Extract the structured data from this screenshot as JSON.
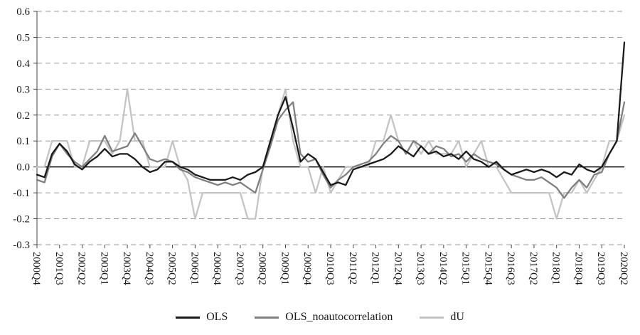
{
  "chart_data": {
    "type": "line",
    "title": "",
    "xlabel": "",
    "ylabel": "",
    "ylim": [
      -0.3,
      0.6
    ],
    "y_ticks": [
      "0.6",
      "0.5",
      "0.4",
      "0.3",
      "0.2",
      "0.1",
      "0.0",
      "-0.1",
      "-0.2",
      "-0.3"
    ],
    "x_tick_every": 3,
    "grid": "dashed-horizontal",
    "grid_color": "#9a9a9a",
    "zero_line_color": "#000000",
    "legend_position": "bottom",
    "x": [
      "2000Q4",
      "2001Q1",
      "2001Q2",
      "2001Q3",
      "2001Q4",
      "2002Q1",
      "2002Q2",
      "2002Q3",
      "2002Q4",
      "2003Q1",
      "2003Q2",
      "2003Q3",
      "2003Q4",
      "2004Q1",
      "2004Q2",
      "2004Q3",
      "2004Q4",
      "2005Q1",
      "2005Q2",
      "2005Q3",
      "2005Q4",
      "2006Q1",
      "2006Q2",
      "2006Q3",
      "2006Q4",
      "2007Q1",
      "2007Q2",
      "2007Q3",
      "2007Q4",
      "2008Q1",
      "2008Q2",
      "2008Q3",
      "2008Q4",
      "2009Q1",
      "2009Q2",
      "2009Q3",
      "2009Q4",
      "2010Q1",
      "2010Q2",
      "2010Q3",
      "2010Q4",
      "2011Q1",
      "2011Q2",
      "2011Q3",
      "2011Q4",
      "2012Q1",
      "2012Q2",
      "2012Q3",
      "2012Q4",
      "2013Q1",
      "2013Q2",
      "2013Q3",
      "2013Q4",
      "2014Q1",
      "2014Q2",
      "2014Q3",
      "2014Q4",
      "2015Q1",
      "2015Q2",
      "2015Q3",
      "2015Q4",
      "2016Q1",
      "2016Q2",
      "2016Q3",
      "2016Q4",
      "2017Q1",
      "2017Q2",
      "2017Q3",
      "2017Q4",
      "2018Q1",
      "2018Q2",
      "2018Q3",
      "2018Q4",
      "2019Q1",
      "2019Q2",
      "2019Q3",
      "2019Q4",
      "2020Q1",
      "2020Q2"
    ],
    "series": [
      {
        "name": "OLS",
        "color": "#1a1a1a",
        "stroke_width": 2.3,
        "values": [
          -0.03,
          -0.04,
          0.05,
          0.09,
          0.06,
          0.01,
          -0.01,
          0.02,
          0.04,
          0.07,
          0.04,
          0.05,
          0.05,
          0.03,
          0.0,
          -0.02,
          -0.01,
          0.02,
          0.02,
          0.0,
          -0.01,
          -0.03,
          -0.04,
          -0.05,
          -0.05,
          -0.05,
          -0.04,
          -0.05,
          -0.03,
          -0.02,
          0.0,
          0.1,
          0.2,
          0.27,
          0.15,
          0.02,
          0.05,
          0.03,
          -0.02,
          -0.07,
          -0.06,
          -0.07,
          -0.01,
          0.0,
          0.01,
          0.02,
          0.03,
          0.05,
          0.08,
          0.06,
          0.04,
          0.08,
          0.05,
          0.06,
          0.04,
          0.05,
          0.03,
          0.06,
          0.03,
          0.02,
          0.0,
          0.02,
          -0.01,
          -0.03,
          -0.02,
          -0.01,
          -0.02,
          -0.01,
          -0.02,
          -0.04,
          -0.02,
          -0.03,
          0.01,
          -0.01,
          -0.02,
          0.0,
          0.05,
          0.1,
          0.48
        ]
      },
      {
        "name": "OLS_noautocorrelation",
        "color": "#808080",
        "stroke_width": 2.3,
        "values": [
          -0.05,
          -0.06,
          0.04,
          0.09,
          0.05,
          0.02,
          0.0,
          0.03,
          0.06,
          0.12,
          0.06,
          0.07,
          0.08,
          0.13,
          0.08,
          0.03,
          0.02,
          0.03,
          0.02,
          -0.01,
          -0.02,
          -0.04,
          -0.05,
          -0.06,
          -0.07,
          -0.06,
          -0.07,
          -0.06,
          -0.08,
          -0.1,
          -0.01,
          0.08,
          0.18,
          0.22,
          0.25,
          0.05,
          0.02,
          0.03,
          -0.03,
          -0.08,
          -0.05,
          -0.03,
          0.0,
          0.01,
          0.02,
          0.05,
          0.09,
          0.12,
          0.1,
          0.05,
          0.1,
          0.08,
          0.05,
          0.08,
          0.07,
          0.04,
          0.05,
          0.02,
          0.05,
          0.03,
          0.02,
          0.01,
          -0.01,
          -0.03,
          -0.04,
          -0.05,
          -0.05,
          -0.04,
          -0.06,
          -0.08,
          -0.12,
          -0.08,
          -0.05,
          -0.08,
          -0.03,
          -0.02,
          0.05,
          0.1,
          0.25
        ]
      },
      {
        "name": "dU",
        "color": "#c4c4c4",
        "stroke_width": 2.3,
        "values": [
          0.0,
          0.0,
          0.1,
          0.1,
          0.1,
          0.0,
          0.0,
          0.1,
          0.1,
          0.1,
          0.05,
          0.1,
          0.3,
          0.1,
          0.1,
          0.0,
          0.0,
          0.0,
          0.1,
          0.0,
          -0.05,
          -0.2,
          -0.1,
          -0.1,
          -0.1,
          -0.1,
          -0.1,
          -0.1,
          -0.2,
          -0.2,
          0.0,
          0.1,
          0.2,
          0.3,
          0.1,
          0.0,
          0.0,
          -0.1,
          0.0,
          -0.1,
          -0.05,
          0.0,
          0.0,
          0.0,
          0.0,
          0.1,
          0.1,
          0.2,
          0.1,
          0.1,
          0.1,
          0.05,
          0.1,
          0.05,
          0.05,
          0.05,
          0.1,
          0.0,
          0.05,
          0.1,
          0.0,
          0.0,
          -0.05,
          -0.1,
          -0.1,
          -0.1,
          -0.1,
          -0.1,
          -0.1,
          -0.2,
          -0.1,
          -0.1,
          -0.05,
          -0.1,
          -0.05,
          0.0,
          0.1,
          0.1,
          0.2
        ]
      }
    ]
  },
  "legend": {
    "items": [
      "OLS",
      "OLS_noautocorrelation",
      "dU"
    ]
  }
}
